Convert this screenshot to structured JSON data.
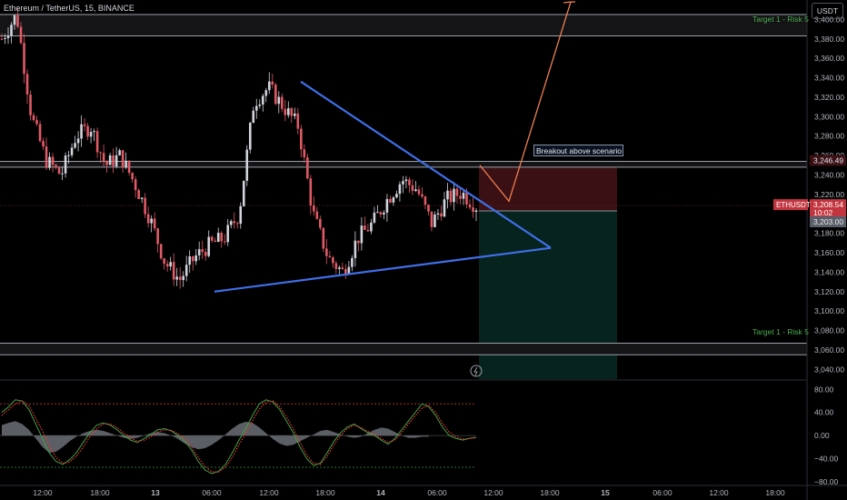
{
  "header": {
    "symbol_line": "Ethereum / TetherUS, 15, BINANCE",
    "currency": "USDT"
  },
  "annotations": {
    "breakout_note": "Breakout above scenario",
    "target_top": "Target 1 - Risk 5",
    "target_bottom": "Target 1 - Risk 5"
  },
  "price_badges": {
    "ticker": "ETHUSDT",
    "last_price": "3,208.54",
    "countdown": "10:02",
    "level_upper": "3,246.49",
    "level_lower": "3,203.00"
  },
  "colors": {
    "background": "#000000",
    "up": "#d1d4dc",
    "down": "#e05a66",
    "trendline": "#3f6fe8",
    "projection": "#f08050",
    "stop_zone": "#3a1014",
    "target_zone": "#06231d",
    "oscillator_fast": "#e53935",
    "oscillator_slow": "#43a047"
  },
  "chart_data": [
    {
      "type": "candlestick",
      "title": "",
      "y_range": [
        3030,
        3420
      ],
      "y_ticks": [
        3040,
        3060,
        3080,
        3100,
        3120,
        3140,
        3160,
        3180,
        3200,
        3220,
        3240,
        3260,
        3280,
        3300,
        3320,
        3340,
        3360,
        3380,
        3400
      ],
      "y_tick_labels": [
        "3,040.00",
        "3,060.00",
        "3,080.00",
        "3,100.00",
        "3,120.00",
        "3,140.00",
        "3,160.00",
        "3,180.00",
        "3,200.00",
        "3,220.00",
        "3,240.00",
        "3,260.00",
        "3,280.00",
        "3,300.00",
        "3,320.00",
        "3,340.00",
        "3,360.00",
        "3,380.00",
        "3,400.00"
      ],
      "x_labels": [
        "12:00",
        "18:00",
        "13",
        "06:00",
        "12:00",
        "18:00",
        "14",
        "06:00",
        "12:00",
        "18:00",
        "15",
        "06:00",
        "12:00",
        "18:00"
      ],
      "price_path": [
        [
          "12:00",
          3380
        ],
        [
          "13:00",
          3405
        ],
        [
          "14:00",
          3300
        ],
        [
          "15:00",
          3255
        ],
        [
          "16:00",
          3240
        ],
        [
          "18:00",
          3280
        ],
        [
          "20:00",
          3290
        ],
        [
          "22:00",
          3250
        ],
        [
          "13 00:00",
          3260
        ],
        [
          "01:00",
          3230
        ],
        [
          "03:00",
          3195
        ],
        [
          "05:00",
          3150
        ],
        [
          "06:00",
          3132
        ],
        [
          "08:00",
          3155
        ],
        [
          "10:00",
          3168
        ],
        [
          "11:30",
          3175
        ],
        [
          "12:30",
          3200
        ],
        [
          "13:30",
          3315
        ],
        [
          "14:30",
          3330
        ],
        [
          "15:30",
          3310
        ],
        [
          "16:30",
          3290
        ],
        [
          "17:30",
          3200
        ],
        [
          "18:30",
          3155
        ],
        [
          "19:30",
          3140
        ],
        [
          "21:00",
          3175
        ],
        [
          "23:00",
          3190
        ],
        [
          "14 01:00",
          3215
        ],
        [
          "03:00",
          3235
        ],
        [
          "04:30",
          3225
        ],
        [
          "05:30",
          3190
        ],
        [
          "06:30",
          3215
        ],
        [
          "07:00",
          3222
        ],
        [
          "08:00",
          3208
        ]
      ],
      "levels": [
        3405,
        3383,
        3254,
        3248,
        3208.54,
        3203,
        3067,
        3055
      ],
      "descending_trendline": [
        [
          "16:00 (13)",
          3336
        ],
        [
          "12:30 (14)",
          3165
        ]
      ],
      "ascending_trendline": [
        [
          "06:00 (13)",
          3120
        ],
        [
          "12:30 (14)",
          3165
        ]
      ],
      "projection_path": [
        [
          "08:00 (14)",
          3250
        ],
        [
          "09:00 (14)",
          3213
        ],
        [
          "12:30 (14)",
          3420
        ]
      ],
      "risk_box": {
        "entry": 3203,
        "stop": 3248,
        "target": 3030
      }
    },
    {
      "type": "line",
      "title": "",
      "y_range": [
        -85,
        90
      ],
      "y_ticks": [
        80,
        40,
        0,
        -40,
        -80
      ],
      "y_tick_labels": [
        "80.00",
        "40.00",
        "0.00",
        "−40.00",
        "−80.00"
      ],
      "reference_lines": [
        55,
        -55
      ],
      "series": [
        {
          "values": [
            40,
            50,
            62,
            60,
            45,
            20,
            -5,
            -30,
            -45,
            -50,
            -42,
            -30,
            -12,
            5,
            18,
            22,
            18,
            10,
            0,
            -8,
            -12,
            -5,
            2,
            10,
            12,
            8,
            0,
            -10,
            -25,
            -45,
            -60,
            -66,
            -62,
            -50,
            -30,
            -8,
            12,
            35,
            55,
            62,
            58,
            45,
            25,
            5,
            -20,
            -40,
            -52,
            -48,
            -30,
            -10,
            5,
            15,
            20,
            12,
            5,
            0,
            -8,
            -15,
            -5,
            10,
            25,
            40,
            55,
            50,
            35,
            15,
            0,
            -5,
            -8,
            -5,
            -3
          ]
        },
        {
          "values": [
            35,
            45,
            55,
            60,
            52,
            30,
            8,
            -18,
            -38,
            -48,
            -46,
            -36,
            -20,
            -2,
            12,
            20,
            20,
            14,
            4,
            -4,
            -10,
            -8,
            -2,
            6,
            10,
            9,
            3,
            -6,
            -20,
            -38,
            -54,
            -63,
            -63,
            -55,
            -38,
            -16,
            4,
            26,
            46,
            58,
            60,
            50,
            32,
            12,
            -12,
            -34,
            -48,
            -50,
            -36,
            -16,
            0,
            12,
            18,
            14,
            7,
            2,
            -5,
            -12,
            -8,
            5,
            20,
            34,
            48,
            52,
            40,
            22,
            6,
            -2,
            -6,
            -5,
            -4
          ]
        },
        {
          "values": [
            18,
            22,
            25,
            20,
            10,
            -5,
            -20,
            -30,
            -28,
            -20,
            -10,
            -2,
            4,
            8,
            10,
            8,
            4,
            0,
            -4,
            -6,
            -4,
            0,
            4,
            6,
            4,
            0,
            -6,
            -14,
            -20,
            -24,
            -22,
            -16,
            -8,
            2,
            12,
            20,
            24,
            22,
            14,
            4,
            -6,
            -14,
            -18,
            -16,
            -10,
            -4,
            2,
            8,
            10,
            6,
            2,
            -2,
            -4,
            -2,
            4,
            10,
            14,
            12,
            6,
            0,
            -4,
            -4,
            -2,
            -2
          ]
        }
      ]
    }
  ]
}
